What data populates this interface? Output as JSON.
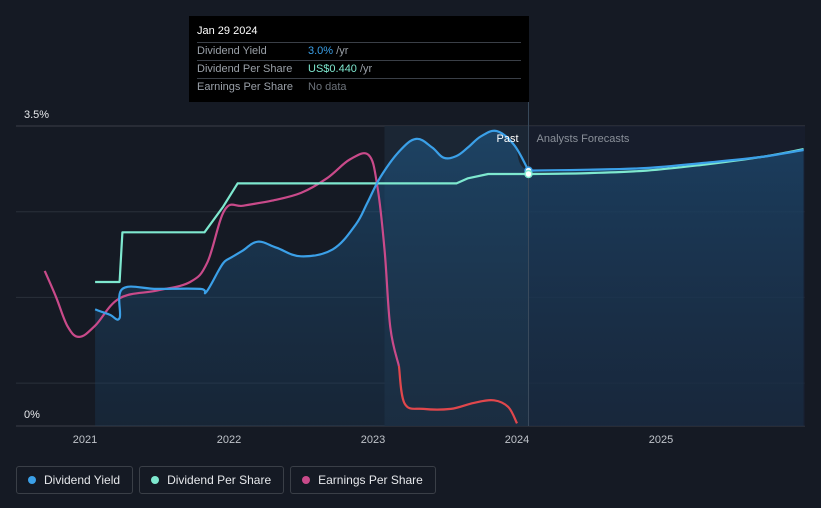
{
  "tooltip": {
    "date": "Jan 29 2024",
    "rows": [
      {
        "label": "Dividend Yield",
        "value": "3.0%",
        "suffix": " /yr",
        "color": "#3ba0e8"
      },
      {
        "label": "Dividend Per Share",
        "value": "US$0.440",
        "suffix": " /yr",
        "color": "#7ee8cf"
      },
      {
        "label": "Earnings Per Share",
        "value": "No data",
        "suffix": "",
        "color": "#6c727a"
      }
    ]
  },
  "legend": [
    {
      "label": "Dividend Yield",
      "color": "#3ba0e8"
    },
    {
      "label": "Dividend Per Share",
      "color": "#7ee8cf"
    },
    {
      "label": "Earnings Per Share",
      "color": "#c94a8a"
    }
  ],
  "colors": {
    "background": "#151a24",
    "dividend_yield": "#3ba0e8",
    "dividend_per_share": "#7ee8cf",
    "earnings_per_share": "#c94a8a",
    "eps_decline": "#e0474c",
    "gridline": "#2a303a"
  },
  "chart_data": {
    "type": "line",
    "y_tick_labels": [
      "3.5%",
      "0%"
    ],
    "ylim": [
      0,
      3.5
    ],
    "x_tick_labels": [
      "2021",
      "2022",
      "2023",
      "2024",
      "2025"
    ],
    "xlim": [
      2020.58,
      2025.99
    ],
    "region_labels": {
      "past": "Past",
      "forecast": "Analysts Forecasts"
    },
    "past_forecast_boundary": 2024.08,
    "shaded_region": [
      2023.08,
      2024.08
    ],
    "grid": true,
    "legend_position": "bottom-left",
    "series": [
      {
        "name": "Dividend Yield",
        "unit": "%",
        "points": [
          [
            2021.07,
            1.36
          ],
          [
            2021.17,
            1.3
          ],
          [
            2021.24,
            1.26
          ],
          [
            2021.26,
            1.6
          ],
          [
            2021.5,
            1.6
          ],
          [
            2021.8,
            1.6
          ],
          [
            2021.84,
            1.56
          ],
          [
            2021.93,
            1.82
          ],
          [
            2021.97,
            1.92
          ],
          [
            2022.02,
            1.97
          ],
          [
            2022.09,
            2.04
          ],
          [
            2022.2,
            2.15
          ],
          [
            2022.33,
            2.08
          ],
          [
            2022.5,
            1.98
          ],
          [
            2022.72,
            2.06
          ],
          [
            2022.88,
            2.35
          ],
          [
            2022.96,
            2.6
          ],
          [
            2023.05,
            2.9
          ],
          [
            2023.18,
            3.2
          ],
          [
            2023.3,
            3.35
          ],
          [
            2023.41,
            3.25
          ],
          [
            2023.49,
            3.13
          ],
          [
            2023.58,
            3.15
          ],
          [
            2023.66,
            3.25
          ],
          [
            2023.75,
            3.38
          ],
          [
            2023.86,
            3.44
          ],
          [
            2023.98,
            3.28
          ],
          [
            2024.08,
            2.98
          ]
        ]
      },
      {
        "name": "Dividend Yield (forecast)",
        "unit": "%",
        "points": [
          [
            2024.08,
            2.98
          ],
          [
            2024.5,
            2.99
          ],
          [
            2024.9,
            3.01
          ],
          [
            2025.3,
            3.07
          ],
          [
            2025.7,
            3.14
          ],
          [
            2025.99,
            3.22
          ]
        ]
      },
      {
        "name": "Dividend Per Share",
        "unit": "relative",
        "points": [
          [
            2021.07,
            1.68
          ],
          [
            2021.24,
            1.68
          ],
          [
            2021.26,
            2.26
          ],
          [
            2021.5,
            2.26
          ],
          [
            2021.83,
            2.26
          ],
          [
            2021.96,
            2.56
          ],
          [
            2022.06,
            2.83
          ],
          [
            2022.3,
            2.83
          ],
          [
            2022.8,
            2.83
          ],
          [
            2023.2,
            2.83
          ],
          [
            2023.58,
            2.83
          ],
          [
            2023.66,
            2.89
          ],
          [
            2023.8,
            2.94
          ],
          [
            2024.08,
            2.94
          ]
        ]
      },
      {
        "name": "Dividend Per Share (forecast)",
        "unit": "relative",
        "points": [
          [
            2024.08,
            2.94
          ],
          [
            2024.5,
            2.95
          ],
          [
            2024.9,
            2.98
          ],
          [
            2025.3,
            3.05
          ],
          [
            2025.7,
            3.14
          ],
          [
            2025.99,
            3.23
          ]
        ]
      },
      {
        "name": "Earnings Per Share",
        "unit": "relative",
        "points": [
          [
            2020.72,
            1.81
          ],
          [
            2020.8,
            1.5
          ],
          [
            2020.88,
            1.16
          ],
          [
            2020.96,
            1.04
          ],
          [
            2021.07,
            1.17
          ],
          [
            2021.24,
            1.49
          ],
          [
            2021.5,
            1.58
          ],
          [
            2021.73,
            1.68
          ],
          [
            2021.85,
            1.91
          ],
          [
            2021.97,
            2.52
          ],
          [
            2022.1,
            2.57
          ],
          [
            2022.3,
            2.63
          ],
          [
            2022.5,
            2.72
          ],
          [
            2022.68,
            2.89
          ],
          [
            2022.84,
            3.11
          ],
          [
            2022.97,
            3.16
          ],
          [
            2023.03,
            2.8
          ],
          [
            2023.08,
            2.06
          ],
          [
            2023.12,
            1.15
          ],
          [
            2023.18,
            0.7
          ]
        ]
      },
      {
        "name": "Earnings Per Share (decline)",
        "unit": "relative",
        "points": [
          [
            2023.18,
            0.7
          ],
          [
            2023.22,
            0.26
          ],
          [
            2023.35,
            0.2
          ],
          [
            2023.54,
            0.2
          ],
          [
            2023.7,
            0.27
          ],
          [
            2023.84,
            0.3
          ],
          [
            2023.94,
            0.22
          ],
          [
            2024.0,
            0.03
          ]
        ]
      }
    ],
    "markers": [
      {
        "series": "Dividend Yield",
        "x": 2024.08,
        "y": 2.98
      },
      {
        "series": "Dividend Per Share",
        "x": 2024.08,
        "y": 2.94
      }
    ]
  }
}
